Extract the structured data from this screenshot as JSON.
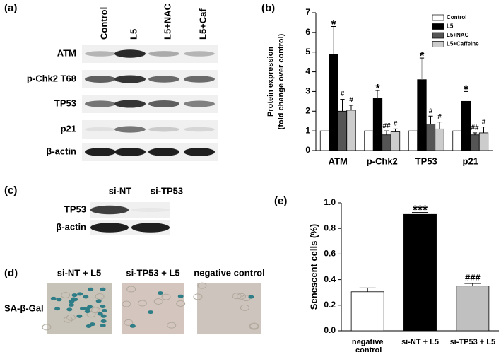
{
  "panel_labels": [
    "(a)",
    "(b)",
    "(c)",
    "(d)",
    "(e)"
  ],
  "blot_a": {
    "columns": [
      "Control",
      "L5",
      "L5+NAC",
      "L5+Caf"
    ],
    "rows": [
      "ATM",
      "p-Chk2 T68",
      "TP53",
      "p21",
      "β-actin"
    ]
  },
  "blot_c": {
    "columns": [
      "si-NT",
      "si-TP53"
    ],
    "rows": [
      "TP53",
      "β-actin"
    ]
  },
  "staining_d": {
    "columns": [
      "si-NT + L5",
      "si-TP53 + L5",
      "negative control"
    ],
    "row": "SA-β-Gal"
  },
  "chart_data": [
    {
      "type": "bar",
      "ylabel": [
        "Protein expression",
        "(fold change over control)"
      ],
      "categories": [
        "ATM",
        "p-Chk2",
        "TP53",
        "p21"
      ],
      "series": [
        {
          "name": "Control",
          "color": "#ffffff",
          "values": [
            1,
            1,
            1,
            1
          ]
        },
        {
          "name": "L5",
          "color": "#000000",
          "values": [
            4.9,
            2.65,
            3.6,
            2.5
          ],
          "errors": [
            1.4,
            0.4,
            1.1,
            0.5
          ],
          "annotations": [
            "*",
            "*",
            "*",
            "*"
          ]
        },
        {
          "name": "L5+NAC",
          "color": "#555555",
          "values": [
            2.0,
            0.8,
            1.35,
            0.8
          ],
          "errors": [
            0.6,
            0.2,
            0.4,
            0.1
          ],
          "annotations": [
            "#",
            "##",
            "#",
            "##"
          ]
        },
        {
          "name": "L5+Caffeine",
          "color": "#cccccc",
          "values": [
            2.05,
            0.95,
            1.1,
            0.9
          ],
          "errors": [
            0.25,
            0.15,
            0.35,
            0.3
          ],
          "annotations": [
            "#",
            "#",
            "#",
            "#"
          ]
        }
      ],
      "ylim": [
        0,
        7
      ],
      "yticks": [
        0,
        1,
        2,
        3,
        4,
        5,
        6,
        7
      ],
      "legend": "upper right"
    },
    {
      "type": "bar",
      "ylabel": [
        "Senescent cells (%)"
      ],
      "categories": [
        "negative control",
        "si-NT + L5",
        "si-TP53 + L5"
      ],
      "values": [
        0.305,
        0.91,
        0.35
      ],
      "errors": [
        0.03,
        0.015,
        0.02
      ],
      "colors": [
        "#ffffff",
        "#000000",
        "#c0c0c0"
      ],
      "annotations": [
        null,
        "***",
        "###"
      ],
      "ylim": [
        0,
        1
      ],
      "yticks": [
        {
          "value": 0,
          "label": "0.0"
        },
        0.2,
        0.4,
        0.6,
        0.8,
        {
          "value": 1,
          "label": "1.0"
        }
      ]
    }
  ]
}
